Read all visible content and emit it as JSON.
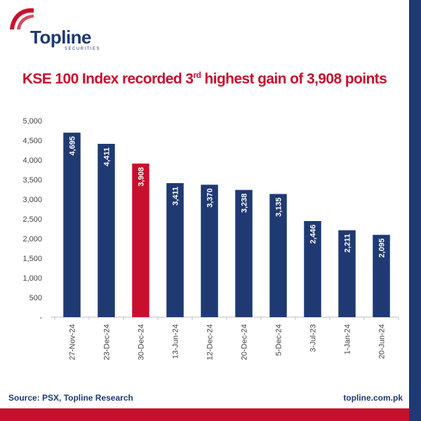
{
  "brand": {
    "name": "Topline",
    "subtitle": "SECURITIES",
    "colors": {
      "navy": "#1f3a73",
      "red": "#c8102e"
    }
  },
  "title": {
    "prefix": "KSE 100 Index recorded 3",
    "superscript": "rd",
    "suffix": " highest gain of 3,908 points"
  },
  "footer": {
    "source": "Source: PSX,  Topline Research",
    "website": "topline.com.pk"
  },
  "chart_data": {
    "type": "bar",
    "categories": [
      "27-Nov-24",
      "23-Dec-24",
      "30-Dec-24",
      "13-Jun-24",
      "12-Dec-24",
      "20-Dec-24",
      "5-Dec-24",
      "3-Jul-23",
      "1-Jan-24",
      "20-Jun-24"
    ],
    "values": [
      4695,
      4411,
      3908,
      3411,
      3370,
      3238,
      3135,
      2446,
      2211,
      2095
    ],
    "value_labels": [
      "4,695",
      "4,411",
      "3,908",
      "3,411",
      "3,370",
      "3,238",
      "3,135",
      "2,446",
      "2,211",
      "2,095"
    ],
    "highlight_category": "30-Dec-24",
    "bar_color": "#1f3a73",
    "highlight_color": "#c8102e",
    "ylim": [
      0,
      5000
    ],
    "yticks": [
      0,
      500,
      1000,
      1500,
      2000,
      2500,
      3000,
      3500,
      4000,
      4500,
      5000
    ],
    "ytick_labels": [
      "-",
      "500",
      "1,000",
      "1,500",
      "2,000",
      "2,500",
      "3,000",
      "3,500",
      "4,000",
      "4,500",
      "5,000"
    ],
    "grid": false,
    "legend": false
  }
}
